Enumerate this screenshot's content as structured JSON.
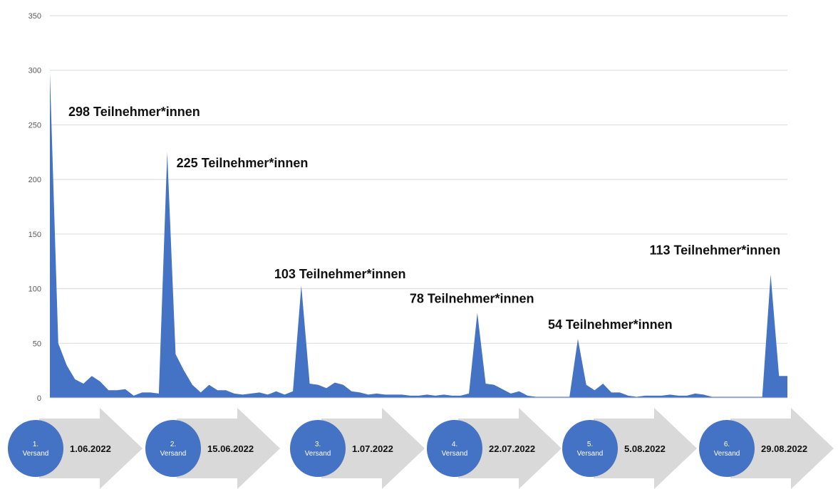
{
  "chart_data": {
    "type": "area",
    "title": "",
    "xlabel": "",
    "ylabel": "",
    "ylim": [
      0,
      350
    ],
    "yticks": [
      0,
      50,
      100,
      150,
      200,
      250,
      300,
      350
    ],
    "grid": true,
    "color": "#4472C4",
    "values": [
      298,
      50,
      30,
      17,
      13,
      20,
      15,
      7,
      7,
      8,
      2,
      5,
      5,
      4,
      225,
      40,
      25,
      12,
      5,
      12,
      7,
      7,
      4,
      3,
      4,
      5,
      3,
      6,
      3,
      6,
      103,
      13,
      12,
      9,
      14,
      12,
      6,
      5,
      3,
      4,
      3,
      3,
      3,
      2,
      2,
      3,
      2,
      3,
      2,
      2,
      4,
      78,
      13,
      12,
      8,
      4,
      6,
      2,
      1,
      1,
      1,
      1,
      1,
      54,
      12,
      7,
      13,
      5,
      5,
      2,
      1,
      2,
      2,
      2,
      3,
      2,
      2,
      4,
      3,
      1,
      1,
      1,
      1,
      1,
      1,
      1,
      113,
      20,
      20
    ],
    "annotations": [
      {
        "index": 0,
        "value": 298,
        "text": "298 Teilnehmer*innen"
      },
      {
        "index": 14,
        "value": 225,
        "text": "225 Teilnehmer*innen"
      },
      {
        "index": 30,
        "value": 103,
        "text": "103 Teilnehmer*innen"
      },
      {
        "index": 51,
        "value": 78,
        "text": "78 Teilnehmer*innen"
      },
      {
        "index": 63,
        "value": 54,
        "text": "54 Teilnehmer*innen"
      },
      {
        "index": 86,
        "value": 113,
        "text": "113 Teilnehmer*innen"
      }
    ]
  },
  "timeline": [
    {
      "num": "1.",
      "label": "Versand",
      "date": "1.06.2022"
    },
    {
      "num": "2.",
      "label": "Versand",
      "date": "15.06.2022"
    },
    {
      "num": "3.",
      "label": "Versand",
      "date": "1.07.2022"
    },
    {
      "num": "4.",
      "label": "Versand",
      "date": "22.07.2022"
    },
    {
      "num": "5.",
      "label": "Versand",
      "date": "5.08.2022"
    },
    {
      "num": "6.",
      "label": "Versand",
      "date": "29.08.2022"
    }
  ],
  "colors": {
    "area": "#4472C4",
    "circle": "#4472C4",
    "arrow": "#D9D9D9",
    "grid": "#D9D9D9"
  }
}
